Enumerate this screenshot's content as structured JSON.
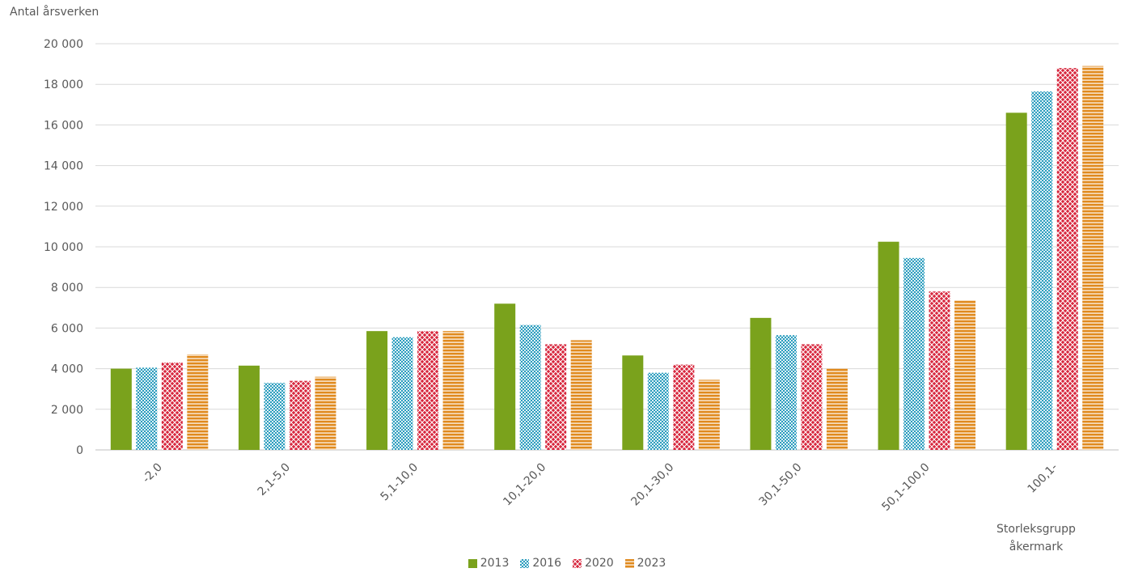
{
  "chart_data": {
    "type": "bar",
    "title": "",
    "ylabel": "Antal årsverken",
    "xlabel": "Storleksgrupp åkermark",
    "xlabel_lines": [
      "Storleksgrupp",
      "åkermark"
    ],
    "ylim": [
      0,
      20000
    ],
    "yticks": [
      0,
      2000,
      4000,
      6000,
      8000,
      10000,
      12000,
      14000,
      16000,
      18000,
      20000
    ],
    "ytick_labels": [
      "0",
      "2 000",
      "4 000",
      "6 000",
      "8 000",
      "10 000",
      "12 000",
      "14 000",
      "16 000",
      "18 000",
      "20 000"
    ],
    "grid": true,
    "legend_position": "bottom",
    "categories": [
      "-2,0",
      "2,1-5,0",
      "5,1-10,0",
      "10,1-20,0",
      "20,1-30,0",
      "30,1-50,0",
      "50,1-100,0",
      "100,1-"
    ],
    "series": [
      {
        "name": "2013",
        "color": "#7aa21c",
        "pattern": "solid",
        "values": [
          4000,
          4150,
          5850,
          7200,
          4650,
          6500,
          10250,
          16600
        ]
      },
      {
        "name": "2016",
        "color": "#2b9dbe",
        "pattern": "dots",
        "values": [
          4050,
          3300,
          5550,
          6150,
          3800,
          5650,
          9450,
          17650
        ]
      },
      {
        "name": "2020",
        "color": "#d7263d",
        "pattern": "crosshatch",
        "values": [
          4300,
          3400,
          5850,
          5200,
          4200,
          5200,
          7800,
          18800
        ]
      },
      {
        "name": "2023",
        "color": "#e08a1e",
        "pattern": "hstripes",
        "values": [
          4700,
          3600,
          5850,
          5400,
          3450,
          4000,
          7350,
          18900
        ]
      }
    ]
  }
}
